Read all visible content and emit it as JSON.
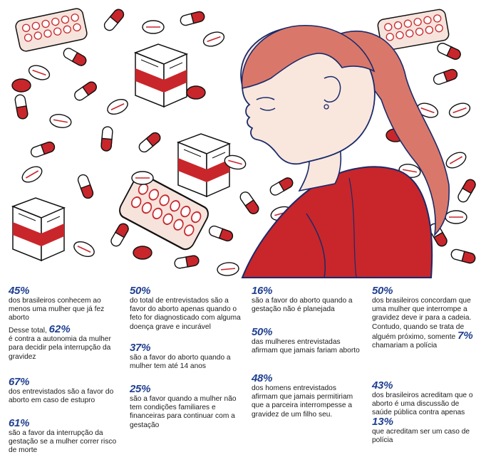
{
  "colors": {
    "red": "#c8262b",
    "navy": "#1f3f8f",
    "skin": "#f9e7de",
    "hair": "#d9786a",
    "outline": "#1a2a6a"
  },
  "stats": {
    "s1": {
      "pct": "45%",
      "text": "dos brasileiros conhecem ao menos uma mulher que já fez aborto"
    },
    "s2": {
      "pre": "Desse total,",
      "pct": "62%",
      "text": "é contra a autonomia da mulher para decidir pela interrupção da gravidez"
    },
    "s3": {
      "pct": "67%",
      "text": "dos entrevistados são a favor do aborto em caso de estupro"
    },
    "s4": {
      "pct": "61%",
      "text": "são a favor da interrupção da gestação se a mulher correr risco de morte"
    },
    "s5": {
      "pct": "50%",
      "text": "do total de entrevistados são a favor do aborto apenas quando o feto for diagnosticado com alguma doença grave e incurável"
    },
    "s6": {
      "pct": "37%",
      "text": "são a favor do aborto quando a mulher tem até 14 anos"
    },
    "s7": {
      "pct": "25%",
      "text": "são a favor quando a mulher não tem condições familiares e financeiras para continuar com a gestação"
    },
    "s8": {
      "pct": "16%",
      "text": "são a favor do aborto quando a gestação não é planejada"
    },
    "s9": {
      "pct": "50%",
      "text": "das mulheres entrevistadas afirmam que jamais fariam aborto"
    },
    "s10": {
      "pct": "48%",
      "text": "dos homens entrevistados afirmam que jamais permitiriam que a parceira interrompesse a gravidez de um filho seu."
    },
    "s11": {
      "pct": "50%",
      "text": "dos brasileiros concordam que uma mulher que interrompe a gravidez deve ir para a cadeia. Contudo, quando se trata de alguém próximo, somente",
      "pct2": "7%",
      "text2": "chamariam a polícia"
    },
    "s12": {
      "pct": "43%",
      "text": "dos brasileiros acreditam que o aborto é uma discussão de saúde pública contra apenas",
      "pct2": "13%",
      "text2": "que acreditam ser um caso de polícia"
    }
  }
}
